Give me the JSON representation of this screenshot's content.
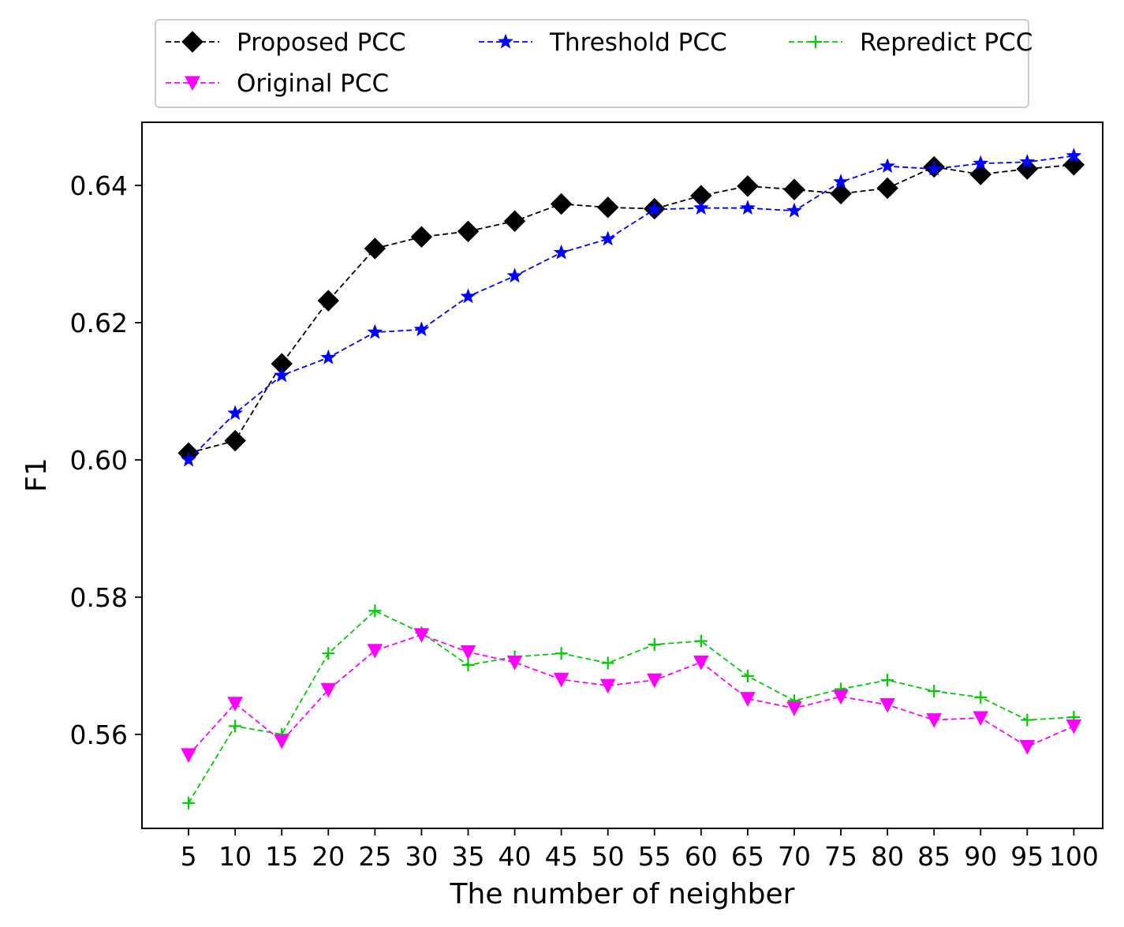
{
  "chart_data": {
    "type": "line",
    "title": "",
    "xlabel": "The number of neighber",
    "ylabel": "F1",
    "x": [
      5,
      10,
      15,
      20,
      25,
      30,
      35,
      40,
      45,
      50,
      55,
      60,
      65,
      70,
      75,
      80,
      85,
      90,
      95,
      100
    ],
    "x_tick_labels": [
      "5",
      "10",
      "15",
      "20",
      "25",
      "30",
      "35",
      "40",
      "45",
      "50",
      "55",
      "60",
      "65",
      "70",
      "75",
      "80",
      "85",
      "90",
      "95",
      "100"
    ],
    "xlim": [
      0,
      103.1
    ],
    "yticks": [
      0.56,
      0.58,
      0.6,
      0.62,
      0.64
    ],
    "y_tick_labels": [
      "0.56",
      "0.58",
      "0.60",
      "0.62",
      "0.64"
    ],
    "ylim": [
      0.5463,
      0.6492
    ],
    "grid": false,
    "legend_position": "top (above plot, 3 columns)",
    "series": [
      {
        "name": "Proposed PCC",
        "color": "#000000",
        "marker": "diamond",
        "line_style": "dashed",
        "values": [
          0.601,
          0.6028,
          0.614,
          0.6232,
          0.6308,
          0.6325,
          0.6333,
          0.6348,
          0.6373,
          0.6368,
          0.6366,
          0.6385,
          0.6399,
          0.6394,
          0.6388,
          0.6396,
          0.6427,
          0.6416,
          0.6424,
          0.643
        ]
      },
      {
        "name": "Threshold PCC",
        "color": "#0000ff",
        "marker": "star",
        "line_style": "dashed",
        "values": [
          0.6,
          0.6068,
          0.6123,
          0.6149,
          0.6186,
          0.619,
          0.6238,
          0.6268,
          0.6302,
          0.6322,
          0.6365,
          0.6367,
          0.6367,
          0.6363,
          0.6405,
          0.6428,
          0.6424,
          0.6432,
          0.6434,
          0.6443
        ]
      },
      {
        "name": "Repredict PCC",
        "color": "#00cc00",
        "marker": "plus",
        "line_style": "dashed",
        "values": [
          0.55,
          0.5612,
          0.56,
          0.5718,
          0.578,
          0.5748,
          0.5701,
          0.5713,
          0.5718,
          0.5704,
          0.5731,
          0.5736,
          0.5685,
          0.5649,
          0.5666,
          0.5679,
          0.5663,
          0.5654,
          0.5621,
          0.5625
        ]
      },
      {
        "name": "Original PCC",
        "color": "#ff00ff",
        "marker": "triangle-down",
        "line_style": "dashed",
        "values": [
          0.557,
          0.5645,
          0.559,
          0.5665,
          0.5722,
          0.5745,
          0.572,
          0.5705,
          0.568,
          0.5671,
          0.5679,
          0.5705,
          0.5652,
          0.5638,
          0.5655,
          0.5643,
          0.5621,
          0.5624,
          0.5582,
          0.5612
        ]
      }
    ]
  }
}
